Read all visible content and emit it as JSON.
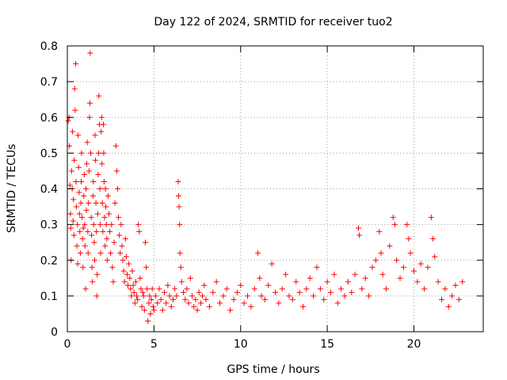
{
  "chart_data": {
    "type": "scatter",
    "title": "Day 122 of 2024, SRMTID for receiver tuo2",
    "xlabel": "GPS time / hours",
    "ylabel": "SRMTID / TECUs",
    "xlim": [
      0,
      24
    ],
    "ylim": [
      0,
      0.8
    ],
    "x_ticks": [
      0,
      5,
      10,
      15,
      20
    ],
    "x_tick_labels": [
      "0",
      "5",
      "10",
      "15",
      "20"
    ],
    "y_ticks": [
      0,
      0.1,
      0.2,
      0.3,
      0.4,
      0.5,
      0.6,
      0.7,
      0.8
    ],
    "y_tick_labels": [
      "0",
      "0.1",
      "0.2",
      "0.3",
      "0.4",
      "0.5",
      "0.6",
      "0.7",
      "0.8"
    ],
    "grid": true,
    "marker": "+",
    "color": "#ff0000",
    "series": [
      {
        "name": "SRMTID",
        "points": [
          [
            0.05,
            0.59
          ],
          [
            0.1,
            0.6
          ],
          [
            0.12,
            0.52
          ],
          [
            0.15,
            0.41
          ],
          [
            0.18,
            0.33
          ],
          [
            0.2,
            0.29
          ],
          [
            0.22,
            0.2
          ],
          [
            0.25,
            0.45
          ],
          [
            0.28,
            0.4
          ],
          [
            0.3,
            0.56
          ],
          [
            0.33,
            0.31
          ],
          [
            0.35,
            0.37
          ],
          [
            0.38,
            0.27
          ],
          [
            0.4,
            0.48
          ],
          [
            0.42,
            0.68
          ],
          [
            0.45,
            0.62
          ],
          [
            0.48,
            0.75
          ],
          [
            0.5,
            0.42
          ],
          [
            0.52,
            0.35
          ],
          [
            0.55,
            0.24
          ],
          [
            0.58,
            0.3
          ],
          [
            0.6,
            0.19
          ],
          [
            0.62,
            0.55
          ],
          [
            0.65,
            0.46
          ],
          [
            0.68,
            0.39
          ],
          [
            0.7,
            0.33
          ],
          [
            0.72,
            0.28
          ],
          [
            0.75,
            0.22
          ],
          [
            0.78,
            0.36
          ],
          [
            0.8,
            0.42
          ],
          [
            0.82,
            0.5
          ],
          [
            0.85,
            0.32
          ],
          [
            0.88,
            0.26
          ],
          [
            0.9,
            0.18
          ],
          [
            0.92,
            0.29
          ],
          [
            0.95,
            0.38
          ],
          [
            0.98,
            0.44
          ],
          [
            1.0,
            0.3
          ],
          [
            1.02,
            0.24
          ],
          [
            1.05,
            0.12
          ],
          [
            1.08,
            0.4
          ],
          [
            1.1,
            0.34
          ],
          [
            1.12,
            0.47
          ],
          [
            1.15,
            0.53
          ],
          [
            1.18,
            0.28
          ],
          [
            1.2,
            0.22
          ],
          [
            1.22,
            0.36
          ],
          [
            1.25,
            0.45
          ],
          [
            1.28,
            0.6
          ],
          [
            1.3,
            0.64
          ],
          [
            1.32,
            0.78
          ],
          [
            1.35,
            0.5
          ],
          [
            1.38,
            0.32
          ],
          [
            1.4,
            0.27
          ],
          [
            1.42,
            0.18
          ],
          [
            1.45,
            0.14
          ],
          [
            1.48,
            0.38
          ],
          [
            1.5,
            0.42
          ],
          [
            1.52,
            0.3
          ],
          [
            1.55,
            0.25
          ],
          [
            1.58,
            0.2
          ],
          [
            1.6,
            0.55
          ],
          [
            1.62,
            0.48
          ],
          [
            1.65,
            0.36
          ],
          [
            1.68,
            0.28
          ],
          [
            1.7,
            0.1
          ],
          [
            1.72,
            0.16
          ],
          [
            1.75,
            0.33
          ],
          [
            1.78,
            0.44
          ],
          [
            1.8,
            0.5
          ],
          [
            1.82,
            0.66
          ],
          [
            1.85,
            0.58
          ],
          [
            1.88,
            0.4
          ],
          [
            1.9,
            0.3
          ],
          [
            1.92,
            0.22
          ],
          [
            1.95,
            0.56
          ],
          [
            1.98,
            0.6
          ],
          [
            2.0,
            0.47
          ],
          [
            2.02,
            0.36
          ],
          [
            2.05,
            0.28
          ],
          [
            2.08,
            0.58
          ],
          [
            2.1,
            0.5
          ],
          [
            2.12,
            0.42
          ],
          [
            2.15,
            0.32
          ],
          [
            2.18,
            0.24
          ],
          [
            2.2,
            0.4
          ],
          [
            2.22,
            0.35
          ],
          [
            2.25,
            0.3
          ],
          [
            2.28,
            0.26
          ],
          [
            2.3,
            0.2
          ],
          [
            2.35,
            0.38
          ],
          [
            2.4,
            0.33
          ],
          [
            2.45,
            0.28
          ],
          [
            2.5,
            0.22
          ],
          [
            2.55,
            0.3
          ],
          [
            2.6,
            0.18
          ],
          [
            2.65,
            0.14
          ],
          [
            2.7,
            0.25
          ],
          [
            2.75,
            0.36
          ],
          [
            2.8,
            0.52
          ],
          [
            2.85,
            0.45
          ],
          [
            2.9,
            0.4
          ],
          [
            2.95,
            0.32
          ],
          [
            3.0,
            0.27
          ],
          [
            3.05,
            0.22
          ],
          [
            3.1,
            0.3
          ],
          [
            3.15,
            0.24
          ],
          [
            3.2,
            0.2
          ],
          [
            3.25,
            0.17
          ],
          [
            3.3,
            0.14
          ],
          [
            3.35,
            0.26
          ],
          [
            3.4,
            0.21
          ],
          [
            3.45,
            0.16
          ],
          [
            3.5,
            0.13
          ],
          [
            3.55,
            0.19
          ],
          [
            3.6,
            0.15
          ],
          [
            3.65,
            0.12
          ],
          [
            3.7,
            0.1
          ],
          [
            3.75,
            0.17
          ],
          [
            3.8,
            0.13
          ],
          [
            3.85,
            0.11
          ],
          [
            3.9,
            0.08
          ],
          [
            3.95,
            0.14
          ],
          [
            4.0,
            0.1
          ],
          [
            4.05,
            0.09
          ],
          [
            4.1,
            0.3
          ],
          [
            4.15,
            0.28
          ],
          [
            4.2,
            0.15
          ],
          [
            4.25,
            0.12
          ],
          [
            4.3,
            0.07
          ],
          [
            4.35,
            0.11
          ],
          [
            4.4,
            0.1
          ],
          [
            4.45,
            0.06
          ],
          [
            4.5,
            0.25
          ],
          [
            4.55,
            0.18
          ],
          [
            4.6,
            0.12
          ],
          [
            4.65,
            0.03
          ],
          [
            4.7,
            0.08
          ],
          [
            4.75,
            0.1
          ],
          [
            4.8,
            0.05
          ],
          [
            4.85,
            0.09
          ],
          [
            4.9,
            0.12
          ],
          [
            4.95,
            0.07
          ],
          [
            5.0,
            0.06
          ],
          [
            5.1,
            0.1
          ],
          [
            5.2,
            0.08
          ],
          [
            5.3,
            0.12
          ],
          [
            5.4,
            0.09
          ],
          [
            5.5,
            0.06
          ],
          [
            5.6,
            0.11
          ],
          [
            5.7,
            0.08
          ],
          [
            5.8,
            0.13
          ],
          [
            5.9,
            0.1
          ],
          [
            6.0,
            0.07
          ],
          [
            6.1,
            0.09
          ],
          [
            6.2,
            0.12
          ],
          [
            6.3,
            0.1
          ],
          [
            6.4,
            0.42
          ],
          [
            6.42,
            0.38
          ],
          [
            6.45,
            0.35
          ],
          [
            6.48,
            0.3
          ],
          [
            6.5,
            0.22
          ],
          [
            6.55,
            0.18
          ],
          [
            6.6,
            0.14
          ],
          [
            6.7,
            0.11
          ],
          [
            6.8,
            0.09
          ],
          [
            6.9,
            0.12
          ],
          [
            7.0,
            0.08
          ],
          [
            7.1,
            0.15
          ],
          [
            7.2,
            0.1
          ],
          [
            7.3,
            0.07
          ],
          [
            7.4,
            0.09
          ],
          [
            7.5,
            0.06
          ],
          [
            7.6,
            0.11
          ],
          [
            7.7,
            0.08
          ],
          [
            7.8,
            0.1
          ],
          [
            7.9,
            0.13
          ],
          [
            8.0,
            0.09
          ],
          [
            8.2,
            0.07
          ],
          [
            8.4,
            0.11
          ],
          [
            8.6,
            0.14
          ],
          [
            8.8,
            0.08
          ],
          [
            9.0,
            0.1
          ],
          [
            9.2,
            0.12
          ],
          [
            9.4,
            0.06
          ],
          [
            9.6,
            0.09
          ],
          [
            9.8,
            0.11
          ],
          [
            10.0,
            0.13
          ],
          [
            10.2,
            0.08
          ],
          [
            10.4,
            0.1
          ],
          [
            10.6,
            0.07
          ],
          [
            10.8,
            0.12
          ],
          [
            11.0,
            0.22
          ],
          [
            11.1,
            0.15
          ],
          [
            11.2,
            0.1
          ],
          [
            11.4,
            0.09
          ],
          [
            11.6,
            0.13
          ],
          [
            11.8,
            0.19
          ],
          [
            12.0,
            0.11
          ],
          [
            12.2,
            0.08
          ],
          [
            12.4,
            0.12
          ],
          [
            12.6,
            0.16
          ],
          [
            12.8,
            0.1
          ],
          [
            13.0,
            0.09
          ],
          [
            13.2,
            0.14
          ],
          [
            13.4,
            0.11
          ],
          [
            13.6,
            0.07
          ],
          [
            13.8,
            0.12
          ],
          [
            14.0,
            0.15
          ],
          [
            14.2,
            0.1
          ],
          [
            14.4,
            0.18
          ],
          [
            14.6,
            0.12
          ],
          [
            14.8,
            0.09
          ],
          [
            15.0,
            0.14
          ],
          [
            15.2,
            0.11
          ],
          [
            15.4,
            0.16
          ],
          [
            15.6,
            0.08
          ],
          [
            15.8,
            0.12
          ],
          [
            16.0,
            0.1
          ],
          [
            16.2,
            0.14
          ],
          [
            16.4,
            0.11
          ],
          [
            16.6,
            0.16
          ],
          [
            16.8,
            0.29
          ],
          [
            16.85,
            0.27
          ],
          [
            17.0,
            0.12
          ],
          [
            17.2,
            0.15
          ],
          [
            17.4,
            0.1
          ],
          [
            17.6,
            0.18
          ],
          [
            17.8,
            0.2
          ],
          [
            18.0,
            0.28
          ],
          [
            18.1,
            0.22
          ],
          [
            18.2,
            0.16
          ],
          [
            18.4,
            0.12
          ],
          [
            18.6,
            0.24
          ],
          [
            18.8,
            0.32
          ],
          [
            18.9,
            0.3
          ],
          [
            19.0,
            0.2
          ],
          [
            19.2,
            0.15
          ],
          [
            19.4,
            0.18
          ],
          [
            19.6,
            0.3
          ],
          [
            19.7,
            0.26
          ],
          [
            19.8,
            0.22
          ],
          [
            20.0,
            0.17
          ],
          [
            20.2,
            0.14
          ],
          [
            20.4,
            0.19
          ],
          [
            20.6,
            0.12
          ],
          [
            20.8,
            0.18
          ],
          [
            21.0,
            0.32
          ],
          [
            21.1,
            0.26
          ],
          [
            21.2,
            0.21
          ],
          [
            21.4,
            0.14
          ],
          [
            21.6,
            0.09
          ],
          [
            21.8,
            0.12
          ],
          [
            22.0,
            0.07
          ],
          [
            22.2,
            0.1
          ],
          [
            22.4,
            0.13
          ],
          [
            22.6,
            0.09
          ],
          [
            22.8,
            0.14
          ]
        ]
      }
    ]
  }
}
